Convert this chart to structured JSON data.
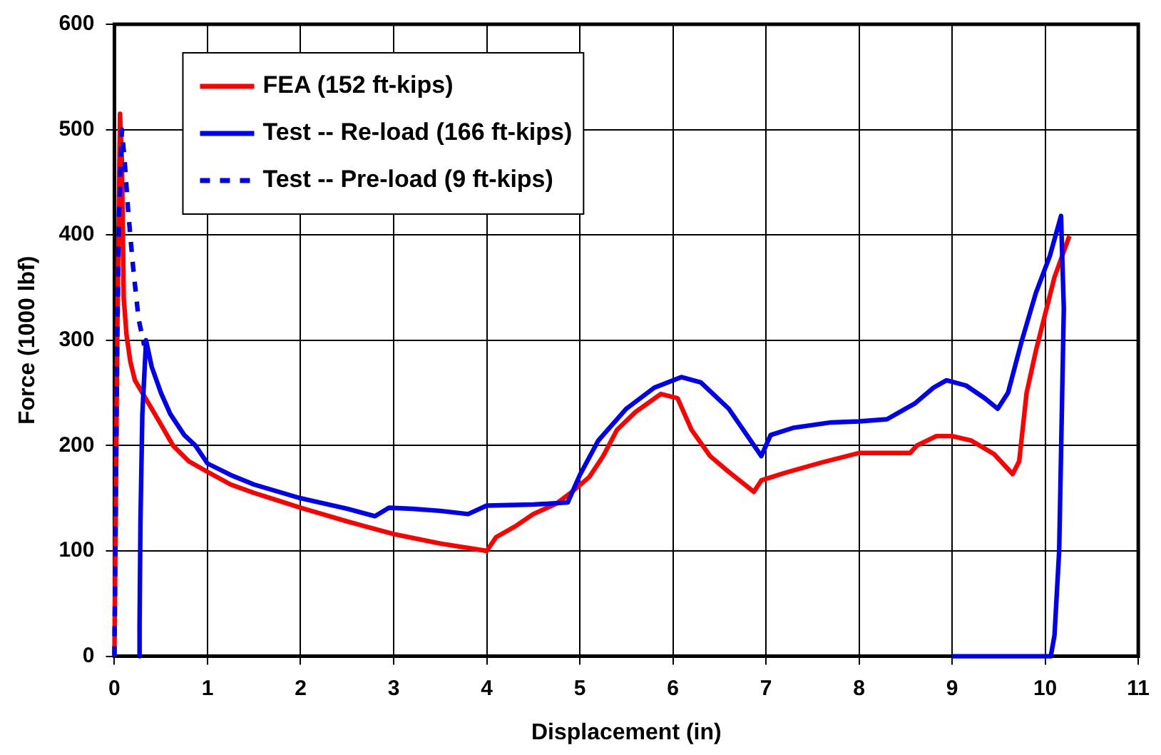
{
  "chart_data": {
    "type": "line",
    "xlabel": "Displacement (in)",
    "ylabel": "Force (1000 lbf)",
    "xlim": [
      0,
      11
    ],
    "xticks": [
      0,
      1,
      2,
      3,
      4,
      5,
      6,
      7,
      8,
      9,
      10,
      11
    ],
    "ylim": [
      0,
      600
    ],
    "yticks": [
      0,
      100,
      200,
      300,
      400,
      500,
      600
    ],
    "grid": true,
    "legend": "top left",
    "marker": "none",
    "series": [
      {
        "name": "FEA (152 ft-kips)",
        "color": "#ff0000",
        "line_style": "solid",
        "x": [
          0,
          0.03,
          0.06,
          0.08,
          0.1,
          0.13,
          0.17,
          0.22,
          0.3,
          0.4,
          0.5,
          0.63,
          0.8,
          1,
          1.25,
          1.5,
          1.75,
          2,
          2.5,
          3,
          3.5,
          4,
          4.1,
          4.3,
          4.5,
          4.75,
          4.9,
          5.1,
          5.25,
          5.4,
          5.6,
          5.87,
          6.05,
          6.2,
          6.4,
          6.6,
          6.87,
          6.95,
          7.2,
          7.6,
          8,
          8.55,
          8.62,
          8.83,
          9.0,
          9.2,
          9.45,
          9.65,
          9.72,
          9.8,
          9.9,
          10,
          10.1,
          10.26
        ],
        "values": [
          0,
          300,
          515,
          470,
          340,
          305,
          280,
          262,
          250,
          235,
          220,
          200,
          185,
          175,
          163,
          155,
          148,
          141,
          128,
          116,
          107,
          100,
          113,
          123,
          135,
          145,
          155,
          170,
          190,
          215,
          232,
          249,
          245,
          215,
          190,
          175,
          156,
          167,
          174,
          184,
          193,
          193,
          200,
          209,
          209,
          205,
          192,
          173,
          185,
          250,
          290,
          325,
          360,
          399
        ]
      },
      {
        "name": "Test -- Re-load (166 ft-kips)",
        "color": "#0000ee",
        "line_style": "solid",
        "x": [
          0.26,
          0.27,
          0.28,
          0.3,
          0.34,
          0.4,
          0.5,
          0.6,
          0.75,
          0.87,
          1,
          1.25,
          1.5,
          2,
          2.5,
          2.8,
          2.95,
          3.2,
          3.5,
          3.8,
          4,
          4.5,
          4.87,
          5,
          5.2,
          5.5,
          5.8,
          6.09,
          6.3,
          6.6,
          6.95,
          7.05,
          7.3,
          7.7,
          8,
          8.3,
          8.6,
          8.8,
          8.94,
          9.15,
          9.35,
          9.49,
          9.6,
          9.75,
          9.9,
          10.05,
          10.17,
          10.2,
          10.15,
          10.1,
          10.06,
          9.8,
          9.4,
          9.0
        ],
        "values": [
          0,
          30,
          130,
          230,
          300,
          275,
          250,
          230,
          210,
          200,
          183,
          172,
          163,
          150,
          140,
          133,
          141,
          140,
          138,
          135,
          143,
          144,
          146,
          172,
          205,
          235,
          255,
          265,
          260,
          235,
          190,
          210,
          217,
          222,
          223,
          225,
          240,
          255,
          262,
          257,
          245,
          235,
          250,
          300,
          345,
          380,
          418,
          330,
          100,
          20,
          0,
          0,
          0,
          0
        ]
      },
      {
        "name": "Test -- Pre-load (9 ft-kips)",
        "color": "#0000ee",
        "line_style": "dashed",
        "x": [
          0,
          0.01,
          0.03,
          0.05,
          0.08,
          0.11,
          0.15,
          0.2,
          0.26,
          0.32
        ],
        "values": [
          0,
          100,
          300,
          420,
          500,
          470,
          420,
          370,
          320,
          295
        ]
      }
    ]
  }
}
